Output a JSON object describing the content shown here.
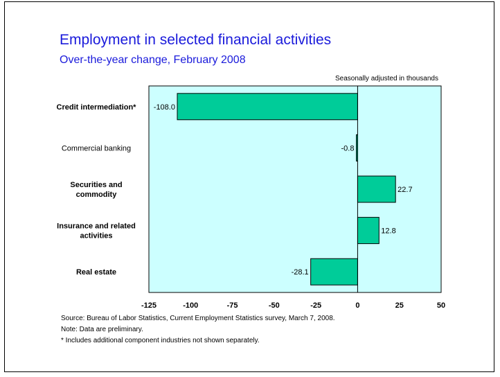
{
  "chart_data": {
    "type": "bar",
    "orientation": "horizontal",
    "title": "Employment in selected financial activities",
    "subtitle": "Over-the-year change, February 2008",
    "units_note": "Seasonally adjusted in thousands",
    "categories": [
      {
        "lines": [
          "Credit intermediation*"
        ],
        "bold": true
      },
      {
        "lines": [
          "Commercial banking"
        ],
        "bold": false
      },
      {
        "lines": [
          "Securities and",
          "commodity"
        ],
        "bold": true
      },
      {
        "lines": [
          "Insurance and related",
          "activities"
        ],
        "bold": true
      },
      {
        "lines": [
          "Real estate"
        ],
        "bold": true
      }
    ],
    "values": [
      -108.0,
      -0.8,
      22.7,
      12.8,
      -28.1
    ],
    "value_labels": [
      "-108.0",
      "-0.8",
      "22.7",
      "12.8",
      "-28.1"
    ],
    "xlim": [
      -125,
      50
    ],
    "xticks": [
      -125,
      -100,
      -75,
      -50,
      -25,
      0,
      25,
      50
    ],
    "grid": false,
    "colors": {
      "bar": "#00cc99",
      "plot_bg": "#ccffff",
      "title": "#1a1adb"
    }
  },
  "footnotes": {
    "source": "Source:  Bureau of Labor Statistics, Current Employment Statistics survey, March 7, 2008.",
    "note": "Note:  Data are preliminary.",
    "asterisk": "* Includes additional component industries not shown separately."
  }
}
